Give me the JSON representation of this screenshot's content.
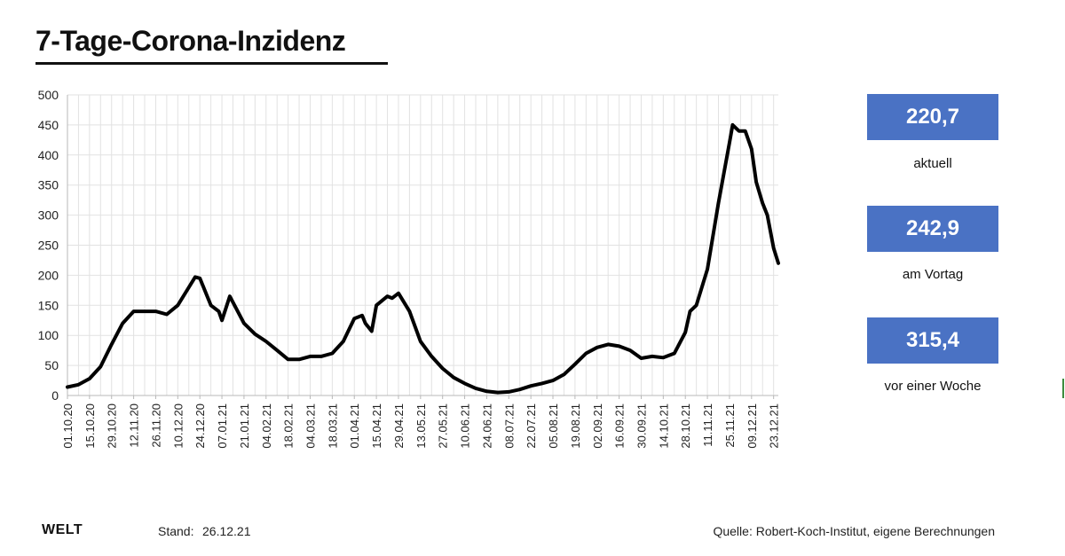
{
  "title": "7-Tage-Corona-Inzidenz",
  "stats": [
    {
      "value": "220,7",
      "label": "aktuell"
    },
    {
      "value": "242,9",
      "label": "am Vortag"
    },
    {
      "value": "315,4",
      "label": "vor einer Woche"
    }
  ],
  "footer": {
    "logo": "WELT",
    "stand_label": "Stand:",
    "stand_value": "26.12.21",
    "source": "Quelle: Robert-Koch-Institut, eigene Berechnungen"
  },
  "colors": {
    "line": "#000000",
    "grid": "#e2e2e2",
    "stat_box": "#4a72c4"
  },
  "chart_data": {
    "type": "line",
    "title": "7-Tage-Corona-Inzidenz",
    "xlabel": "",
    "ylabel": "",
    "ylim": [
      0,
      500
    ],
    "y_ticks": [
      0,
      50,
      100,
      150,
      200,
      250,
      300,
      350,
      400,
      450,
      500
    ],
    "x_ticks": [
      "01.10.20",
      "15.10.20",
      "29.10.20",
      "12.11.20",
      "26.11.20",
      "10.12.20",
      "24.12.20",
      "07.01.21",
      "21.01.21",
      "04.02.21",
      "18.02.21",
      "04.03.21",
      "18.03.21",
      "01.04.21",
      "15.04.21",
      "29.04.21",
      "13.05.21",
      "27.05.21",
      "10.06.21",
      "24.06.21",
      "08.07.21",
      "22.07.21",
      "05.08.21",
      "19.08.21",
      "02.09.21",
      "16.09.21",
      "30.09.21",
      "14.10.21",
      "28.10.21",
      "11.11.21",
      "25.11.21",
      "09.12.21",
      "23.12.21"
    ],
    "grid": true,
    "legend": "none",
    "series": [
      {
        "x": [
          "01.10.20",
          "08.10.20",
          "15.10.20",
          "22.10.20",
          "29.10.20",
          "05.11.20",
          "12.11.20",
          "19.11.20",
          "26.11.20",
          "03.12.20",
          "10.12.20",
          "17.12.20",
          "21.12.20",
          "24.12.20",
          "31.12.20",
          "05.01.21",
          "07.01.21",
          "12.01.21",
          "21.01.21",
          "28.01.21",
          "04.02.21",
          "11.02.21",
          "18.02.21",
          "25.02.21",
          "04.03.21",
          "11.03.21",
          "18.03.21",
          "25.03.21",
          "01.04.21",
          "06.04.21",
          "08.04.21",
          "12.04.21",
          "15.04.21",
          "22.04.21",
          "25.04.21",
          "29.04.21",
          "06.05.21",
          "13.05.21",
          "20.05.21",
          "27.05.21",
          "03.06.21",
          "10.06.21",
          "17.06.21",
          "24.06.21",
          "01.07.21",
          "08.07.21",
          "15.07.21",
          "22.07.21",
          "29.07.21",
          "05.08.21",
          "12.08.21",
          "19.08.21",
          "26.08.21",
          "02.09.21",
          "09.09.21",
          "16.09.21",
          "23.09.21",
          "30.09.21",
          "07.10.21",
          "14.10.21",
          "21.10.21",
          "28.10.21",
          "31.10.21",
          "04.11.21",
          "11.11.21",
          "18.11.21",
          "25.11.21",
          "27.11.21",
          "01.12.21",
          "05.12.21",
          "09.12.21",
          "12.12.21",
          "16.12.21",
          "19.12.21",
          "23.12.21",
          "26.12.21"
        ],
        "values": [
          14,
          18,
          28,
          48,
          85,
          120,
          140,
          140,
          140,
          135,
          150,
          180,
          197,
          195,
          150,
          140,
          125,
          165,
          120,
          102,
          90,
          75,
          60,
          60,
          65,
          65,
          70,
          90,
          128,
          133,
          120,
          107,
          150,
          165,
          162,
          170,
          140,
          90,
          65,
          45,
          30,
          20,
          12,
          7,
          5,
          6,
          10,
          16,
          20,
          25,
          35,
          52,
          70,
          80,
          85,
          82,
          75,
          62,
          65,
          63,
          70,
          105,
          140,
          150,
          210,
          320,
          420,
          450,
          440,
          440,
          410,
          355,
          320,
          300,
          245,
          220
        ]
      }
    ]
  }
}
